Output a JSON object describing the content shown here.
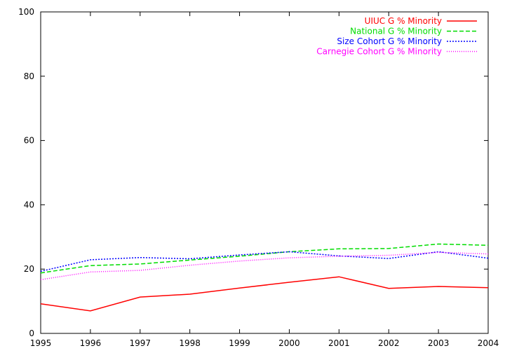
{
  "chart_data": {
    "type": "line",
    "title": "",
    "xlabel": "",
    "ylabel": "",
    "xlim": [
      1995,
      2004
    ],
    "ylim": [
      0,
      100
    ],
    "grid": false,
    "legend_position": "top-right",
    "x_ticks": [
      "1995",
      "1996",
      "1997",
      "1998",
      "1999",
      "2000",
      "2001",
      "2002",
      "2003",
      "2004"
    ],
    "y_ticks": [
      "0",
      "20",
      "40",
      "60",
      "80",
      "100"
    ],
    "x": [
      1995,
      1996,
      1997,
      1998,
      1999,
      2000,
      2001,
      2002,
      2003,
      2004
    ],
    "series": [
      {
        "name": "UIUC G % Minority",
        "color": "#ff0000",
        "dash": "solid",
        "values": [
          9.2,
          7.0,
          11.3,
          12.2,
          14.1,
          15.9,
          17.6,
          14.0,
          14.6,
          14.2
        ]
      },
      {
        "name": "National G % Minority",
        "color": "#00dd00",
        "dash": "dashed",
        "values": [
          18.8,
          21.1,
          21.6,
          22.8,
          24.0,
          25.4,
          26.3,
          26.4,
          27.8,
          27.4
        ]
      },
      {
        "name": "Size Cohort G % Minority",
        "color": "#0000ff",
        "dash": "dotted-short",
        "values": [
          19.3,
          22.9,
          23.6,
          23.2,
          24.4,
          25.4,
          24.1,
          23.3,
          25.4,
          23.4
        ]
      },
      {
        "name": "Carnegie Cohort G % Minority",
        "color": "#ff00ff",
        "dash": "dotted",
        "values": [
          16.7,
          19.1,
          19.6,
          21.2,
          22.5,
          23.5,
          24.0,
          24.3,
          25.2,
          24.7
        ]
      }
    ]
  }
}
